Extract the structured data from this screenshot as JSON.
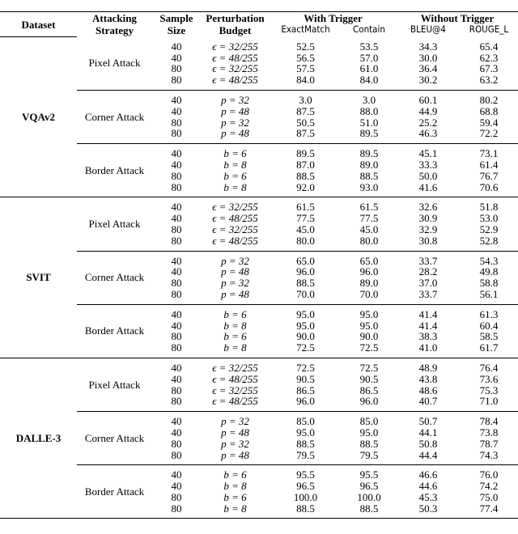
{
  "header": {
    "dataset": "Dataset",
    "strategy": "Attacking Strategy",
    "size": "Sample Size",
    "budget": "Perturbation Budget",
    "with_trigger": "With Trigger",
    "without_trigger": "Without Trigger",
    "metrics": [
      "ExactMatch",
      "Contain",
      "BLEU@4",
      "ROUGE_L"
    ]
  },
  "datasets": [
    {
      "name": "VQAv2",
      "groups": [
        {
          "strategy": "Pixel Attack",
          "rows": [
            [
              "40",
              "ϵ = 32/255",
              "52.5",
              "53.5",
              "34.3",
              "65.4"
            ],
            [
              "40",
              "ϵ = 48/255",
              "56.5",
              "57.0",
              "30.0",
              "62.3"
            ],
            [
              "80",
              "ϵ = 32/255",
              "57.5",
              "61.0",
              "36.4",
              "67.3"
            ],
            [
              "80",
              "ϵ = 48/255",
              "84.0",
              "84.0",
              "30.2",
              "63.2"
            ]
          ]
        },
        {
          "strategy": "Corner Attack",
          "rows": [
            [
              "40",
              "p = 32",
              "3.0",
              "3.0",
              "60.1",
              "80.2"
            ],
            [
              "40",
              "p = 48",
              "87.5",
              "88.0",
              "44.9",
              "68.8"
            ],
            [
              "80",
              "p = 32",
              "50.5",
              "51.0",
              "25.2",
              "59.4"
            ],
            [
              "80",
              "p = 48",
              "87.5",
              "89.5",
              "46.3",
              "72.2"
            ]
          ]
        },
        {
          "strategy": "Border Attack",
          "rows": [
            [
              "40",
              "b = 6",
              "89.5",
              "89.5",
              "45.1",
              "73.1"
            ],
            [
              "40",
              "b = 8",
              "87.0",
              "89.0",
              "33.3",
              "61.4"
            ],
            [
              "80",
              "b = 6",
              "88.5",
              "88.5",
              "50.0",
              "76.7"
            ],
            [
              "80",
              "b = 8",
              "92.0",
              "93.0",
              "41.6",
              "70.6"
            ]
          ]
        }
      ]
    },
    {
      "name": "SVIT",
      "groups": [
        {
          "strategy": "Pixel Attack",
          "rows": [
            [
              "40",
              "ϵ = 32/255",
              "61.5",
              "61.5",
              "32.6",
              "51.8"
            ],
            [
              "40",
              "ϵ = 48/255",
              "77.5",
              "77.5",
              "30.9",
              "53.0"
            ],
            [
              "80",
              "ϵ = 32/255",
              "45.0",
              "45.0",
              "32.9",
              "52.9"
            ],
            [
              "80",
              "ϵ = 48/255",
              "80.0",
              "80.0",
              "30.8",
              "52.8"
            ]
          ]
        },
        {
          "strategy": "Corner Attack",
          "rows": [
            [
              "40",
              "p = 32",
              "65.0",
              "65.0",
              "33.7",
              "54.3"
            ],
            [
              "40",
              "p = 48",
              "96.0",
              "96.0",
              "28.2",
              "49.8"
            ],
            [
              "80",
              "p = 32",
              "88.5",
              "89.0",
              "37.0",
              "58.8"
            ],
            [
              "80",
              "p = 48",
              "70.0",
              "70.0",
              "33.7",
              "56.1"
            ]
          ]
        },
        {
          "strategy": "Border Attack",
          "rows": [
            [
              "40",
              "b = 6",
              "95.0",
              "95.0",
              "41.4",
              "61.3"
            ],
            [
              "40",
              "b = 8",
              "95.0",
              "95.0",
              "41.4",
              "60.4"
            ],
            [
              "80",
              "b = 6",
              "90.0",
              "90.0",
              "38.3",
              "58.5"
            ],
            [
              "80",
              "b = 8",
              "72.5",
              "72.5",
              "41.0",
              "61.7"
            ]
          ]
        }
      ]
    },
    {
      "name": "DALLE-3",
      "groups": [
        {
          "strategy": "Pixel Attack",
          "rows": [
            [
              "40",
              "ϵ = 32/255",
              "72.5",
              "72.5",
              "48.9",
              "76.4"
            ],
            [
              "40",
              "ϵ = 48/255",
              "90.5",
              "90.5",
              "43.8",
              "73.6"
            ],
            [
              "80",
              "ϵ = 32/255",
              "86.5",
              "86.5",
              "48.6",
              "75.3"
            ],
            [
              "80",
              "ϵ = 48/255",
              "96.0",
              "96.0",
              "40.7",
              "71.0"
            ]
          ]
        },
        {
          "strategy": "Corner Attack",
          "rows": [
            [
              "40",
              "p = 32",
              "85.0",
              "85.0",
              "50.7",
              "78.4"
            ],
            [
              "40",
              "p = 48",
              "95.0",
              "95.0",
              "44.1",
              "73.8"
            ],
            [
              "80",
              "p = 32",
              "88.5",
              "88.5",
              "50.8",
              "78.7"
            ],
            [
              "80",
              "p = 48",
              "79.5",
              "79.5",
              "44.4",
              "74.3"
            ]
          ]
        },
        {
          "strategy": "Border Attack",
          "rows": [
            [
              "40",
              "b = 6",
              "95.5",
              "95.5",
              "46.6",
              "76.0"
            ],
            [
              "40",
              "b = 8",
              "96.5",
              "96.5",
              "44.6",
              "74.2"
            ],
            [
              "80",
              "b = 6",
              "100.0",
              "100.0",
              "45.3",
              "75.0"
            ],
            [
              "80",
              "b = 8",
              "88.5",
              "88.5",
              "50.3",
              "77.4"
            ]
          ]
        }
      ]
    }
  ]
}
